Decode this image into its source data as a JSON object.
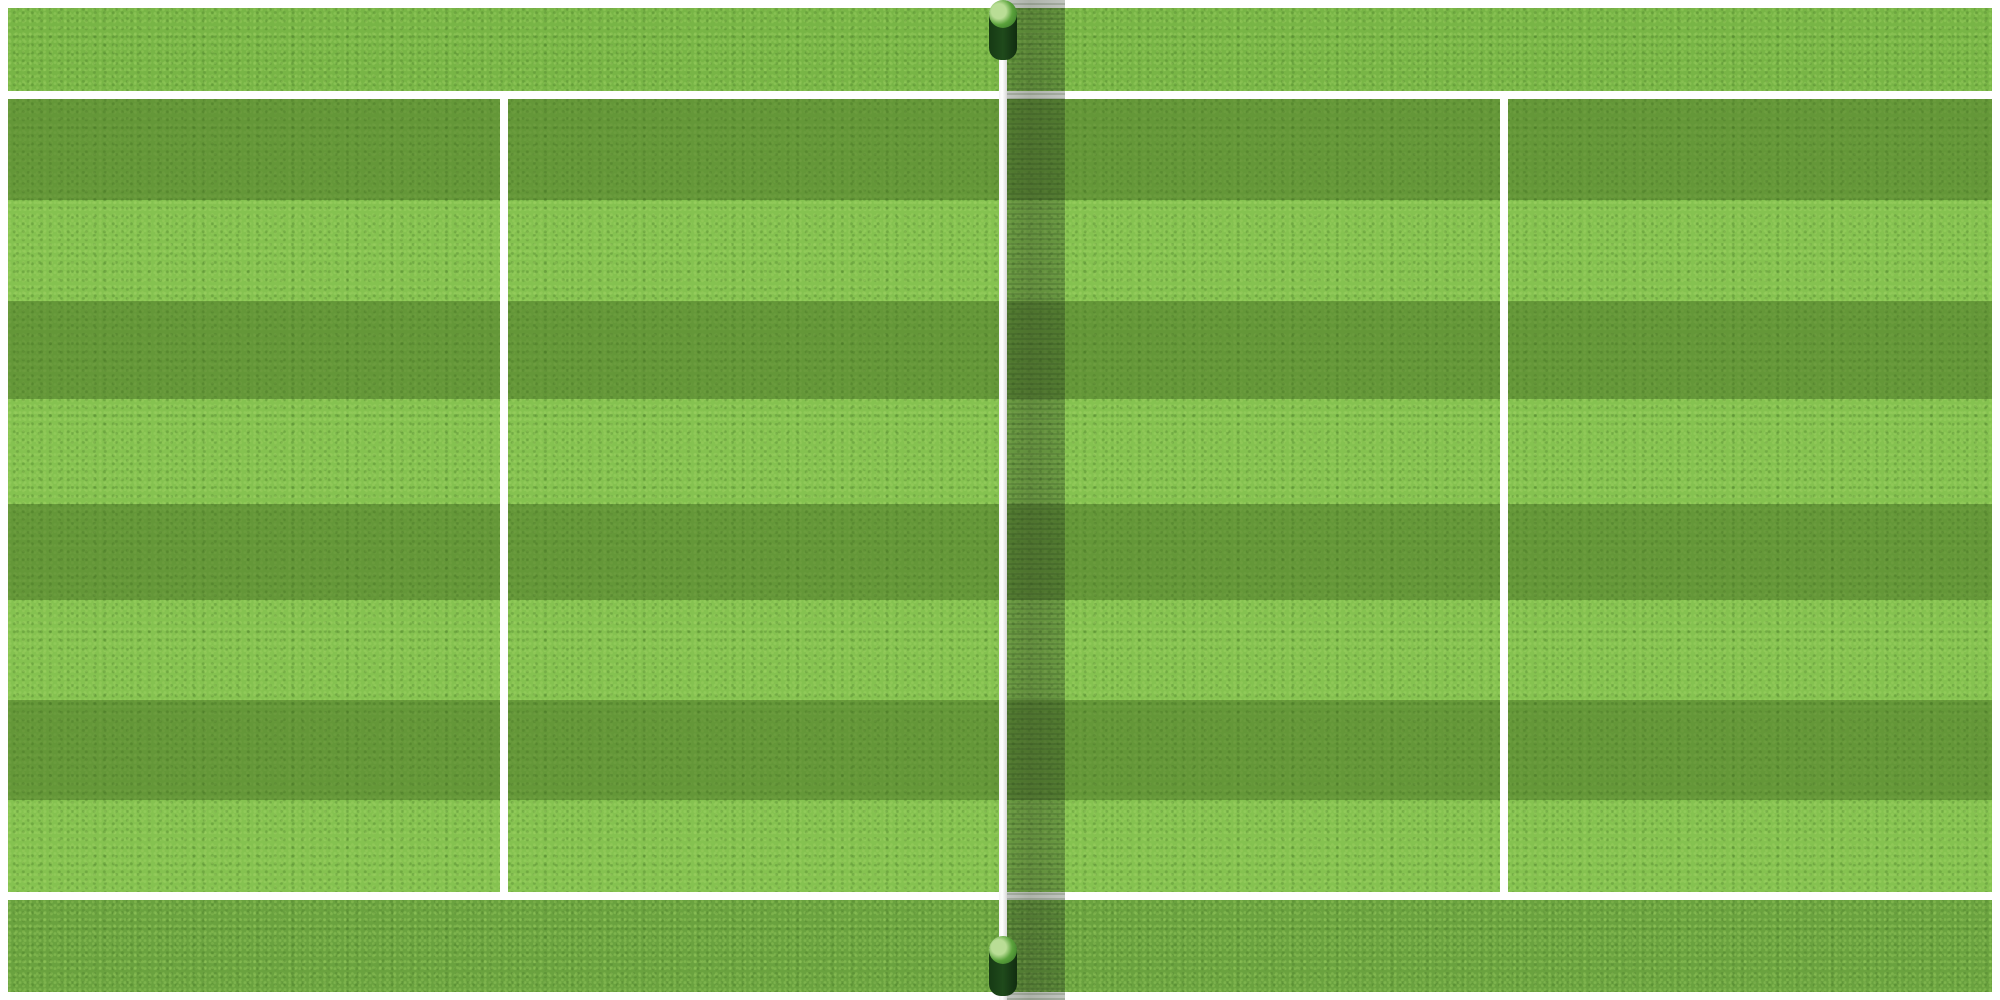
{
  "scene": "tennis-court-top-down",
  "colors": {
    "grass_light": "#85c250",
    "grass_dark_stripe": "#5f8e38",
    "line": "#ffffff",
    "net_post": "#1f4a1b",
    "net_post_cap": "#5aa23b"
  },
  "stripes": {
    "count_dark": 4,
    "orientation": "horizontal"
  },
  "net": {
    "orientation": "vertical",
    "posts": 2
  }
}
